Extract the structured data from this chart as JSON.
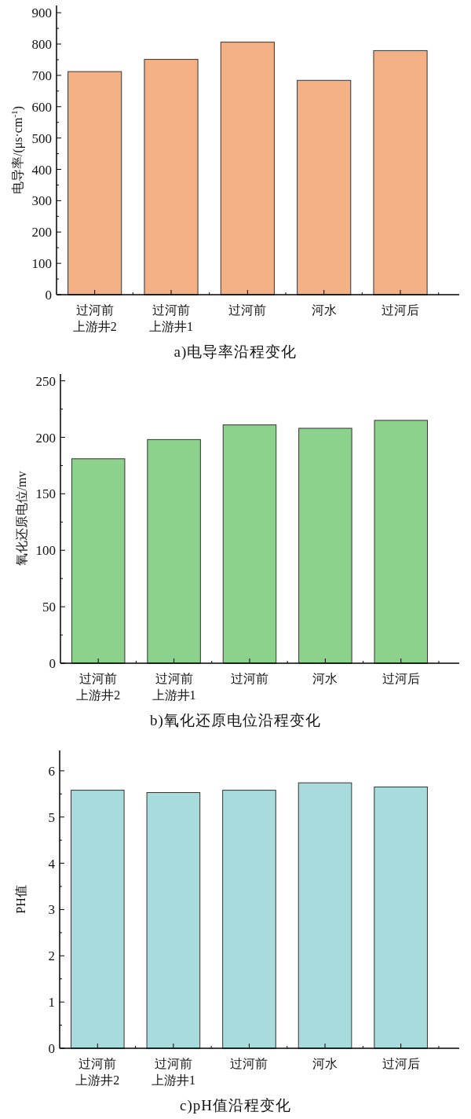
{
  "chart_data": [
    {
      "type": "bar",
      "title": "a)电导率沿程变化",
      "ylabel": "电导率/(μs·cm$^{-1}$)",
      "categories": [
        "过河前上游井2",
        "过河前上游井1",
        "过河前",
        "河水",
        "过河后"
      ],
      "values": [
        712,
        751,
        806,
        684,
        779
      ],
      "color": "#f4b186",
      "ylim": [
        0,
        923
      ],
      "yticks": [
        0,
        100,
        200,
        300,
        400,
        500,
        600,
        700,
        800,
        900
      ]
    },
    {
      "type": "bar",
      "title": "b)氧化还原电位沿程变化",
      "ylabel": "氧化还原电位/mv",
      "categories": [
        "过河前上游井2",
        "过河前上游井1",
        "过河前",
        "河水",
        "过河后"
      ],
      "values": [
        181,
        198,
        211,
        208,
        215
      ],
      "color": "#8cd18c",
      "ylim": [
        0,
        256
      ],
      "yticks": [
        0,
        50,
        100,
        150,
        200,
        250
      ]
    },
    {
      "type": "bar",
      "title": "c)pH值沿程变化",
      "ylabel": "PH值",
      "categories": [
        "过河前上游井2",
        "过河前上游井1",
        "过河前",
        "河水",
        "过河后"
      ],
      "values": [
        5.58,
        5.53,
        5.58,
        5.74,
        5.65
      ],
      "color": "#a8dcdc",
      "ylim": [
        0,
        6.44
      ],
      "yticks": [
        0,
        1,
        2,
        3,
        4,
        5,
        6
      ]
    }
  ]
}
